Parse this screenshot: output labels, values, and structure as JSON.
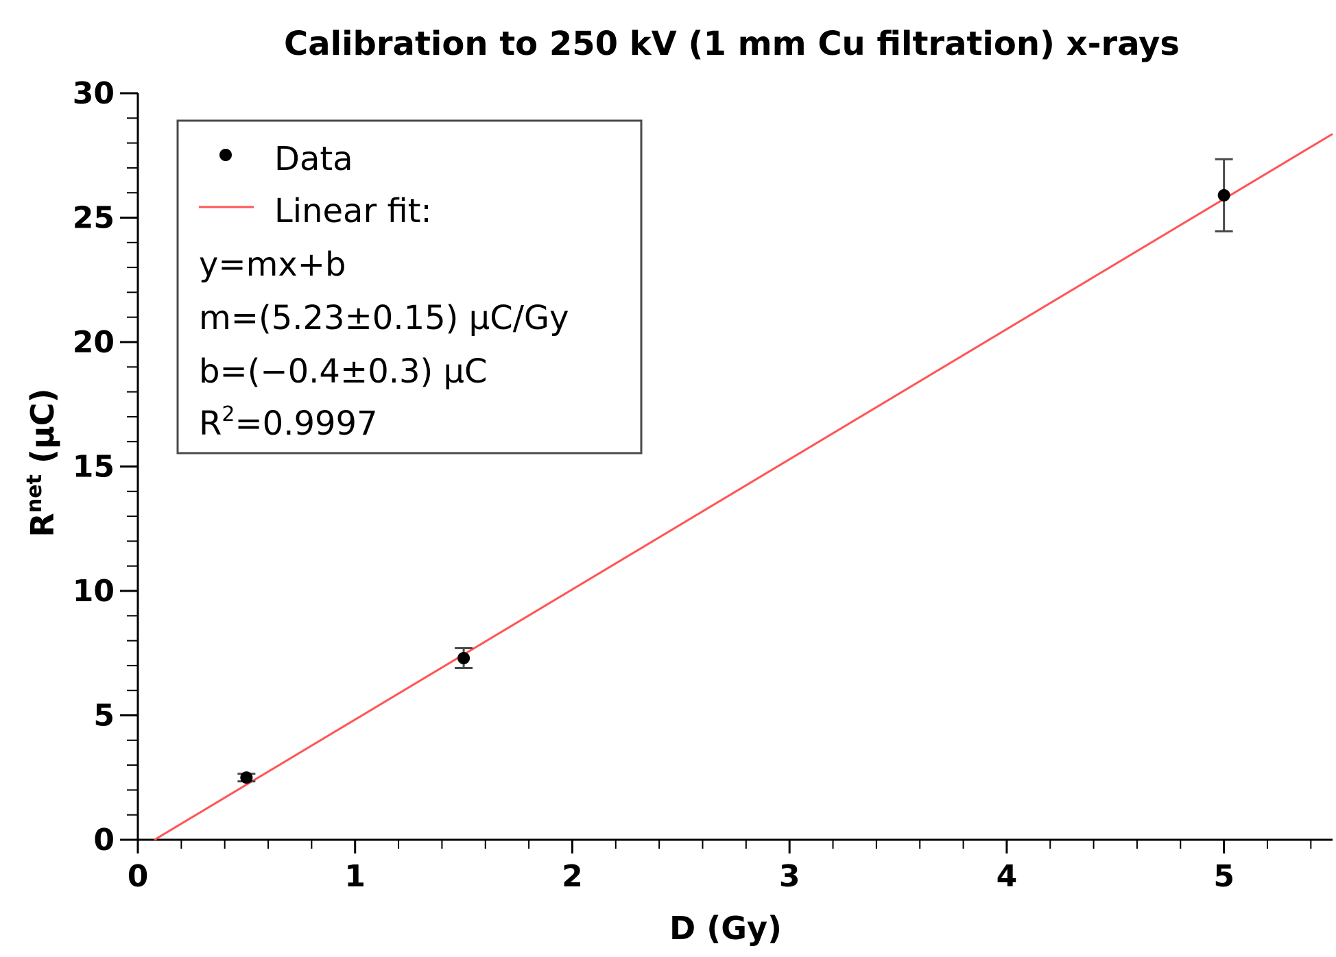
{
  "chart_data": {
    "type": "scatter",
    "title": "Calibration to 250 kV (1 mm Cu filtration) x-rays",
    "xlabel": "D (Gy)",
    "ylabel": {
      "base": "R",
      "superscript": "net",
      "unit": " (μC)"
    },
    "xlim": [
      0,
      5.5
    ],
    "ylim": [
      0,
      30
    ],
    "x_ticks": [
      0,
      1,
      2,
      3,
      4,
      5
    ],
    "x_tick_labels": [
      "0",
      "1",
      "2",
      "3",
      "4",
      "5"
    ],
    "x_minor_step": 0.2,
    "y_ticks": [
      0,
      5,
      10,
      15,
      20,
      25,
      30
    ],
    "y_tick_labels": [
      "0",
      "5",
      "10",
      "15",
      "20",
      "25",
      "30"
    ],
    "y_minor_step": 1,
    "grid": false,
    "legend_position": "top-left",
    "series": [
      {
        "name": "Data",
        "kind": "points",
        "color": "#000000",
        "x": [
          0.5,
          1.5,
          5.0
        ],
        "y": [
          2.5,
          7.3,
          25.9
        ],
        "y_err": [
          0.15,
          0.4,
          1.45
        ]
      },
      {
        "name": "Linear fit:",
        "kind": "line",
        "color": "#ff5555",
        "slope": 5.23,
        "intercept": -0.4
      }
    ],
    "legend": {
      "entries": [
        {
          "label": "Data",
          "marker": "dot",
          "color": "#000000"
        },
        {
          "label": "Linear fit:",
          "marker": "line",
          "color": "#ff5555"
        }
      ],
      "extra_lines": [
        "y=mx+b",
        "m=(5.23±0.15) μC/Gy",
        "b=(−0.4±0.3) μC"
      ],
      "r2": {
        "base": "R",
        "superscript": "2",
        "rest": "=0.9997"
      }
    },
    "colors": {
      "fit_line": "#ff5555",
      "points": "#000000",
      "error_bars": "#4a4a4a",
      "axes": "#000000",
      "legend_border": "#4a4a4a"
    }
  }
}
